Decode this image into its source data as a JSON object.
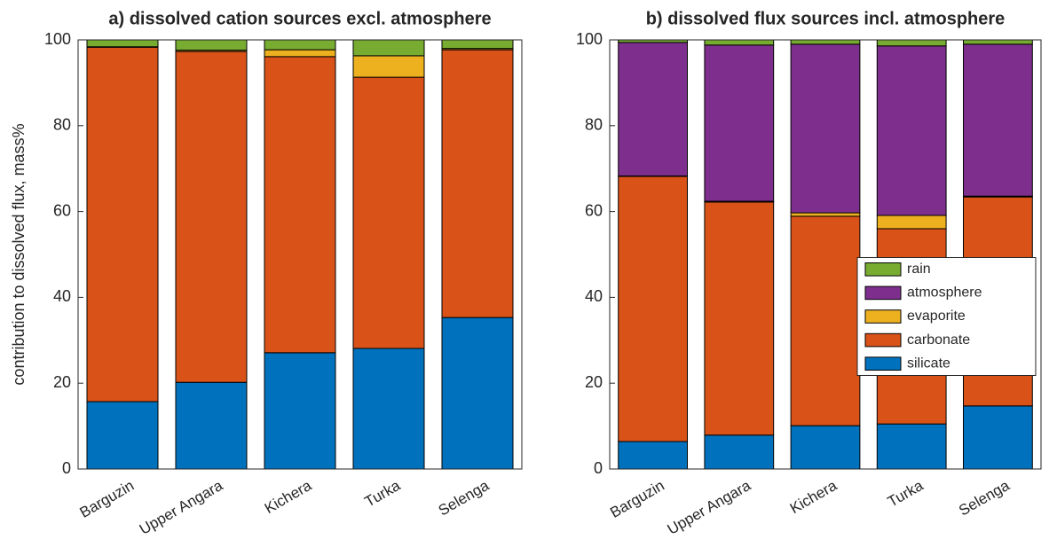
{
  "chart_data": [
    {
      "type": "bar",
      "stacked": true,
      "title": "a) dissolved cation sources excl. atmosphere",
      "y_label": "contribution to dissolved flux, mass%",
      "categories": [
        "Barguzin",
        "Upper Angara",
        "Kichera",
        "Turka",
        "Selenga"
      ],
      "series": [
        {
          "name": "silicate",
          "color": "#0072bd",
          "values": [
            15.7,
            20.2,
            27.1,
            28.1,
            35.3
          ]
        },
        {
          "name": "carbonate",
          "color": "#d95319",
          "values": [
            82.6,
            77.1,
            69.0,
            63.2,
            62.4
          ]
        },
        {
          "name": "evaporite",
          "color": "#edb120",
          "values": [
            0.1,
            0.3,
            1.6,
            5.0,
            0.3
          ]
        },
        {
          "name": "rain",
          "color": "#77ac30",
          "values": [
            1.6,
            2.4,
            2.3,
            3.7,
            2.0
          ]
        }
      ],
      "ylim": [
        0,
        100
      ],
      "yticks": [
        0,
        20,
        40,
        60,
        80,
        100
      ]
    },
    {
      "type": "bar",
      "stacked": true,
      "title": "b) dissolved flux sources incl. atmosphere",
      "categories": [
        "Barguzin",
        "Upper Angara",
        "Kichera",
        "Turka",
        "Selenga"
      ],
      "series": [
        {
          "name": "silicate",
          "color": "#0072bd",
          "values": [
            6.4,
            7.9,
            10.1,
            10.5,
            14.7
          ]
        },
        {
          "name": "carbonate",
          "color": "#d95319",
          "values": [
            61.8,
            54.3,
            48.8,
            45.5,
            48.7
          ]
        },
        {
          "name": "evaporite",
          "color": "#edb120",
          "values": [
            0.1,
            0.2,
            0.8,
            3.1,
            0.2
          ]
        },
        {
          "name": "atmosphere",
          "color": "#7e2f8e",
          "values": [
            31.1,
            36.4,
            39.3,
            39.5,
            35.4
          ]
        },
        {
          "name": "rain",
          "color": "#77ac30",
          "values": [
            0.6,
            1.2,
            1.0,
            1.4,
            1.0
          ]
        }
      ],
      "ylim": [
        0,
        100
      ],
      "yticks": [
        0,
        20,
        40,
        60,
        80,
        100
      ],
      "legend": "east"
    }
  ]
}
